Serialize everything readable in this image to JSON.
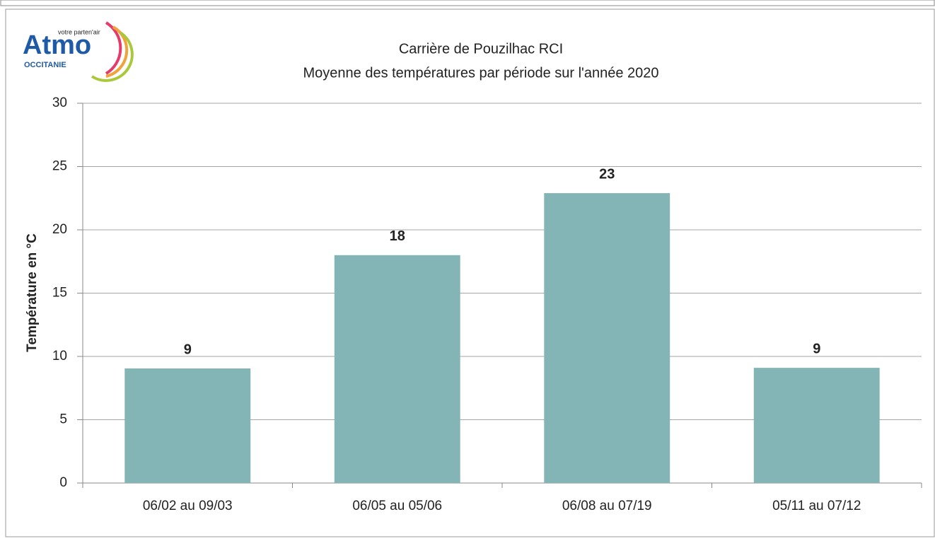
{
  "logo": {
    "name": "Atmo",
    "tagline": "votre parten'air",
    "region": "OCCITANIE"
  },
  "chart_data": {
    "type": "bar",
    "title": "Carrière de Pouzilhac RCI",
    "subtitle": "Moyenne des températures par période sur l'année 2020",
    "y_label": "Température en °C",
    "categories": [
      "06/02 au 09/03",
      "06/05 au 05/06",
      "06/08 au 07/19",
      "05/11 au 07/12"
    ],
    "values": [
      9.05,
      18,
      22.9,
      9.1
    ],
    "value_labels": [
      "9",
      "18",
      "23",
      "9"
    ],
    "color": "#84b5b6",
    "ylim": [
      0,
      30
    ],
    "yticks": [
      0,
      5,
      10,
      15,
      20,
      25,
      30
    ],
    "grid": true
  }
}
